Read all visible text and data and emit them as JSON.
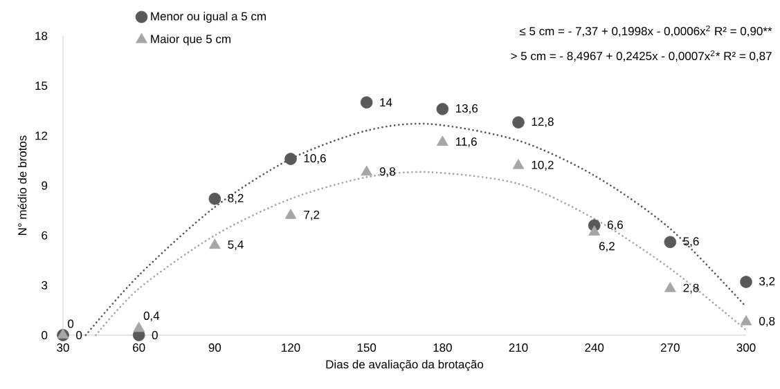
{
  "chart_data": {
    "type": "scatter",
    "xlabel": "Dias de avaliação da brotação",
    "ylabel": "N° médio de brotos",
    "x": [
      30,
      60,
      90,
      120,
      150,
      180,
      210,
      240,
      270,
      300
    ],
    "xlim": [
      30,
      300
    ],
    "xticks": [
      30,
      60,
      90,
      120,
      150,
      180,
      210,
      240,
      270,
      300
    ],
    "ylim": [
      0,
      18
    ],
    "yticks": [
      0,
      3,
      6,
      9,
      12,
      15,
      18
    ],
    "legend": "top left",
    "grid": false,
    "annotations": [
      "≤ 5 cm = - 7,37 + 0,1998x - 0,0006x$^{2}$ R² = 0,90**",
      "> 5 cm = - 8,4967 + 0,2425x  - 0,0007x$^{2}$* R² = 0,87"
    ],
    "series": [
      {
        "name": "Menor ou igual a 5 cm",
        "color": "#595959",
        "marker": "circle",
        "values": [
          0,
          0,
          8.2,
          10.6,
          14,
          13.6,
          12.8,
          6.6,
          5.6,
          3.2
        ],
        "value_labels": [
          "0",
          "0",
          "8,2",
          "10,6",
          "14",
          "13,6",
          "12,8",
          "6,6",
          "5,6",
          "3,2"
        ]
      },
      {
        "name": "Maior que 5 cm",
        "color": "#a6a6a6",
        "marker": "triangle",
        "values": [
          0,
          0.4,
          5.4,
          7.2,
          9.8,
          11.6,
          10.2,
          6.2,
          2.8,
          0.8
        ],
        "value_labels": [
          "0",
          "0,4",
          "5,4",
          "7,2",
          "9,8",
          "11,6",
          "10,2",
          "6,2",
          "2,8",
          "0,8"
        ]
      },
      {
        "type": "line",
        "color": "#595959",
        "line_style": "dotted",
        "marker": "none",
        "x": [
          39,
          60,
          90,
          120,
          150,
          175,
          210,
          240,
          270,
          300
        ],
        "values": [
          0,
          3.6,
          7.7,
          10.6,
          12.3,
          12.7,
          11.7,
          9.6,
          6.4,
          1.7
        ]
      },
      {
        "type": "line",
        "color": "#a6a6a6",
        "line_style": "dotted",
        "marker": "none",
        "x": [
          43,
          60,
          90,
          120,
          150,
          175,
          210,
          240,
          270,
          300
        ],
        "values": [
          0,
          2.8,
          6.0,
          8.2,
          9.5,
          9.8,
          9.1,
          7.0,
          4.0,
          0.3
        ]
      }
    ]
  }
}
